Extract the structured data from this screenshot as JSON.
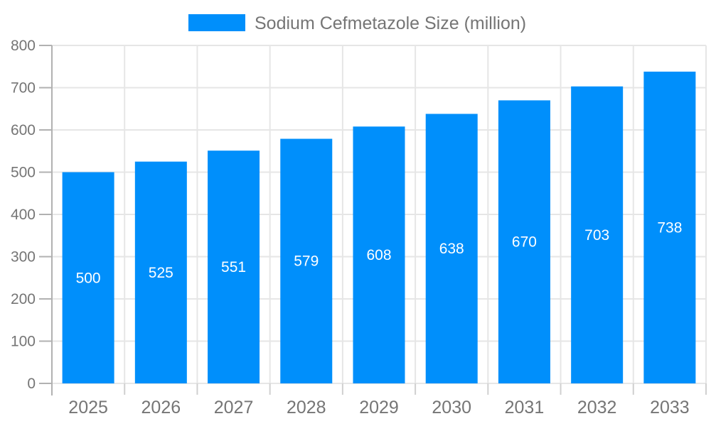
{
  "chart_data": {
    "type": "bar",
    "title": "",
    "legend": {
      "position": "top-center"
    },
    "categories": [
      "2025",
      "2026",
      "2027",
      "2028",
      "2029",
      "2030",
      "2031",
      "2032",
      "2033"
    ],
    "series": [
      {
        "name": "Sodium Cefmetazole Size (million)",
        "values": [
          500,
          525,
          551,
          579,
          608,
          638,
          670,
          703,
          738
        ]
      }
    ],
    "xlabel": "",
    "ylabel": "",
    "ylim": [
      0,
      800
    ],
    "y_ticks": [
      0,
      100,
      200,
      300,
      400,
      500,
      600,
      700,
      800
    ],
    "grid": true,
    "value_labels": "inside-center",
    "colors": {
      "bar": "#008FFB",
      "bar_label": "#ffffff",
      "axis_text": "#757575",
      "grid_line": "#e6e6e6",
      "axis_line": "#b1b1b1",
      "x_tick": "#d0d0d0",
      "background": "#ffffff"
    }
  }
}
